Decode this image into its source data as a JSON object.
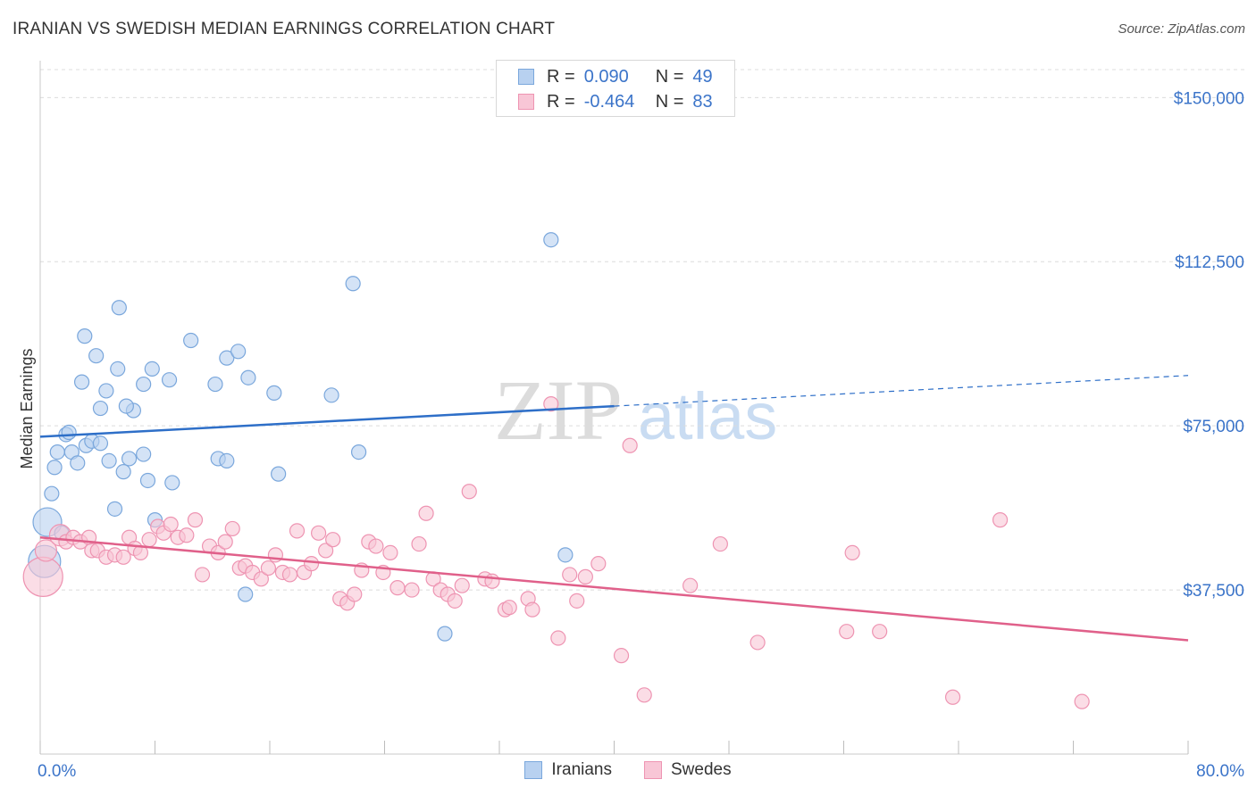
{
  "title": "IRANIAN VS SWEDISH MEDIAN EARNINGS CORRELATION CHART",
  "source": "Source: ZipAtlas.com",
  "watermark": {
    "zip": "ZIP",
    "atlas": "atlas"
  },
  "colors": {
    "blue_fill": "#b8d1f0",
    "blue_stroke": "#7aa7dc",
    "blue_line": "#2e6fc8",
    "pink_fill": "#f8c6d6",
    "pink_stroke": "#ee94b2",
    "pink_line": "#e0608a",
    "tick_label": "#3b74c9",
    "grid": "#dcdcdc"
  },
  "legend_top": [
    {
      "label": "R =",
      "r": "0.090",
      "n_label": "N =",
      "n": "49",
      "color": "blue"
    },
    {
      "label": "R =",
      "r": "-0.464",
      "n_label": "N =",
      "n": "83",
      "color": "pink"
    }
  ],
  "chart_data": {
    "type": "scatter",
    "title": "IRANIAN VS SWEDISH MEDIAN EARNINGS CORRELATION CHART",
    "xlabel": "",
    "ylabel": "Median Earnings",
    "xlim": [
      0,
      80
    ],
    "ylim": [
      0,
      157000
    ],
    "x_tick_labels": [
      "0.0%",
      "80.0%"
    ],
    "y_ticks": [
      37500,
      75000,
      112500,
      150000
    ],
    "y_tick_labels": [
      "$37,500",
      "$75,000",
      "$112,500",
      "$150,000"
    ],
    "grid": true,
    "legend_position": "top-center",
    "series": [
      {
        "name": "Iranians",
        "color": "blue",
        "trend": {
          "x": [
            0,
            40
          ],
          "y": [
            72500,
            79500
          ],
          "dashed_extension_to": [
            80,
            86500
          ]
        },
        "points": [
          [
            0.5,
            53000,
            16
          ],
          [
            0.8,
            59500,
            8
          ],
          [
            1.0,
            65500,
            8
          ],
          [
            1.2,
            69000,
            8
          ],
          [
            1.5,
            50500,
            8
          ],
          [
            1.8,
            73000,
            8
          ],
          [
            2.0,
            73500,
            8
          ],
          [
            2.2,
            69000,
            8
          ],
          [
            2.6,
            66500,
            8
          ],
          [
            3.2,
            70500,
            8
          ],
          [
            3.6,
            71500,
            8
          ],
          [
            4.2,
            71000,
            8
          ],
          [
            4.8,
            67000,
            8
          ],
          [
            5.2,
            56000,
            8
          ],
          [
            5.8,
            64500,
            8
          ],
          [
            6.2,
            67500,
            8
          ],
          [
            6.5,
            78500,
            8
          ],
          [
            7.2,
            68500,
            8
          ],
          [
            7.5,
            62500,
            8
          ],
          [
            8.0,
            53500,
            8
          ],
          [
            9.2,
            62000,
            8
          ],
          [
            12.4,
            67500,
            8
          ],
          [
            13.0,
            67000,
            8
          ],
          [
            16.6,
            64000,
            8
          ],
          [
            22.2,
            69000,
            8
          ],
          [
            2.9,
            85000,
            8
          ],
          [
            3.1,
            95500,
            8
          ],
          [
            3.9,
            91000,
            8
          ],
          [
            4.2,
            79000,
            8
          ],
          [
            4.6,
            83000,
            8
          ],
          [
            5.5,
            102000,
            8
          ],
          [
            5.4,
            88000,
            8
          ],
          [
            6.0,
            79500,
            8
          ],
          [
            7.2,
            84500,
            8
          ],
          [
            7.8,
            88000,
            8
          ],
          [
            9.0,
            85500,
            8
          ],
          [
            10.5,
            94500,
            8
          ],
          [
            12.2,
            84500,
            8
          ],
          [
            13.0,
            90500,
            8
          ],
          [
            13.8,
            92000,
            8
          ],
          [
            14.5,
            86000,
            8
          ],
          [
            16.3,
            82500,
            8
          ],
          [
            20.3,
            82000,
            8
          ],
          [
            21.8,
            107500,
            8
          ],
          [
            35.6,
            117500,
            8
          ],
          [
            28.2,
            27500,
            8
          ],
          [
            14.3,
            36500,
            8
          ],
          [
            36.6,
            45500,
            8
          ],
          [
            0.3,
            44000,
            18
          ]
        ]
      },
      {
        "name": "Swedes",
        "color": "pink",
        "trend": {
          "x": [
            0,
            80
          ],
          "y": [
            49500,
            26000
          ]
        },
        "points": [
          [
            0.2,
            40500,
            22
          ],
          [
            0.4,
            46500,
            12
          ],
          [
            1.4,
            50000,
            12
          ],
          [
            1.8,
            48500,
            8
          ],
          [
            2.3,
            49500,
            8
          ],
          [
            2.8,
            48500,
            8
          ],
          [
            3.4,
            49500,
            8
          ],
          [
            3.6,
            46500,
            8
          ],
          [
            4.0,
            46500,
            8
          ],
          [
            4.6,
            45000,
            8
          ],
          [
            5.2,
            45500,
            8
          ],
          [
            5.8,
            45000,
            8
          ],
          [
            6.2,
            49500,
            8
          ],
          [
            6.6,
            47000,
            8
          ],
          [
            7.0,
            46000,
            8
          ],
          [
            7.6,
            49000,
            8
          ],
          [
            8.2,
            52000,
            8
          ],
          [
            8.6,
            50500,
            8
          ],
          [
            9.1,
            52500,
            8
          ],
          [
            9.6,
            49500,
            8
          ],
          [
            10.2,
            50000,
            8
          ],
          [
            10.8,
            53500,
            8
          ],
          [
            11.3,
            41000,
            8
          ],
          [
            11.8,
            47500,
            8
          ],
          [
            12.4,
            46000,
            8
          ],
          [
            12.9,
            48500,
            8
          ],
          [
            13.4,
            51500,
            8
          ],
          [
            13.9,
            42500,
            8
          ],
          [
            14.3,
            43000,
            8
          ],
          [
            14.8,
            41500,
            8
          ],
          [
            15.4,
            40000,
            8
          ],
          [
            15.9,
            42500,
            8
          ],
          [
            16.4,
            45500,
            8
          ],
          [
            16.9,
            41500,
            8
          ],
          [
            17.4,
            41000,
            8
          ],
          [
            17.9,
            51000,
            8
          ],
          [
            18.4,
            41500,
            8
          ],
          [
            18.9,
            43500,
            8
          ],
          [
            19.4,
            50500,
            8
          ],
          [
            19.9,
            46500,
            8
          ],
          [
            20.4,
            49000,
            8
          ],
          [
            20.9,
            35500,
            8
          ],
          [
            21.4,
            34500,
            8
          ],
          [
            21.9,
            36500,
            8
          ],
          [
            22.4,
            42000,
            8
          ],
          [
            22.9,
            48500,
            8
          ],
          [
            23.4,
            47500,
            8
          ],
          [
            23.9,
            41500,
            8
          ],
          [
            24.4,
            46000,
            8
          ],
          [
            24.9,
            38000,
            8
          ],
          [
            25.9,
            37500,
            8
          ],
          [
            26.4,
            48000,
            8
          ],
          [
            26.9,
            55000,
            8
          ],
          [
            27.4,
            40000,
            8
          ],
          [
            27.9,
            37500,
            8
          ],
          [
            28.4,
            36500,
            8
          ],
          [
            28.9,
            35000,
            8
          ],
          [
            29.4,
            38500,
            8
          ],
          [
            29.9,
            60000,
            8
          ],
          [
            31.0,
            40000,
            8
          ],
          [
            31.5,
            39500,
            8
          ],
          [
            32.4,
            33000,
            8
          ],
          [
            32.7,
            33500,
            8
          ],
          [
            34.0,
            35500,
            8
          ],
          [
            34.3,
            33000,
            8
          ],
          [
            35.6,
            80000,
            8
          ],
          [
            36.1,
            26500,
            8
          ],
          [
            36.9,
            41000,
            8
          ],
          [
            37.4,
            35000,
            8
          ],
          [
            38.0,
            40500,
            8
          ],
          [
            38.9,
            43500,
            8
          ],
          [
            40.5,
            22500,
            8
          ],
          [
            41.1,
            70500,
            8
          ],
          [
            42.1,
            13500,
            8
          ],
          [
            45.3,
            38500,
            8
          ],
          [
            47.4,
            48000,
            8
          ],
          [
            50.0,
            25500,
            8
          ],
          [
            56.2,
            28000,
            8
          ],
          [
            56.6,
            46000,
            8
          ],
          [
            58.5,
            28000,
            8
          ],
          [
            63.6,
            13000,
            8
          ],
          [
            66.9,
            53500,
            8
          ],
          [
            72.6,
            12000,
            8
          ]
        ]
      }
    ]
  },
  "legend_bottom": [
    {
      "label": "Iranians",
      "color": "blue"
    },
    {
      "label": "Swedes",
      "color": "pink"
    }
  ]
}
